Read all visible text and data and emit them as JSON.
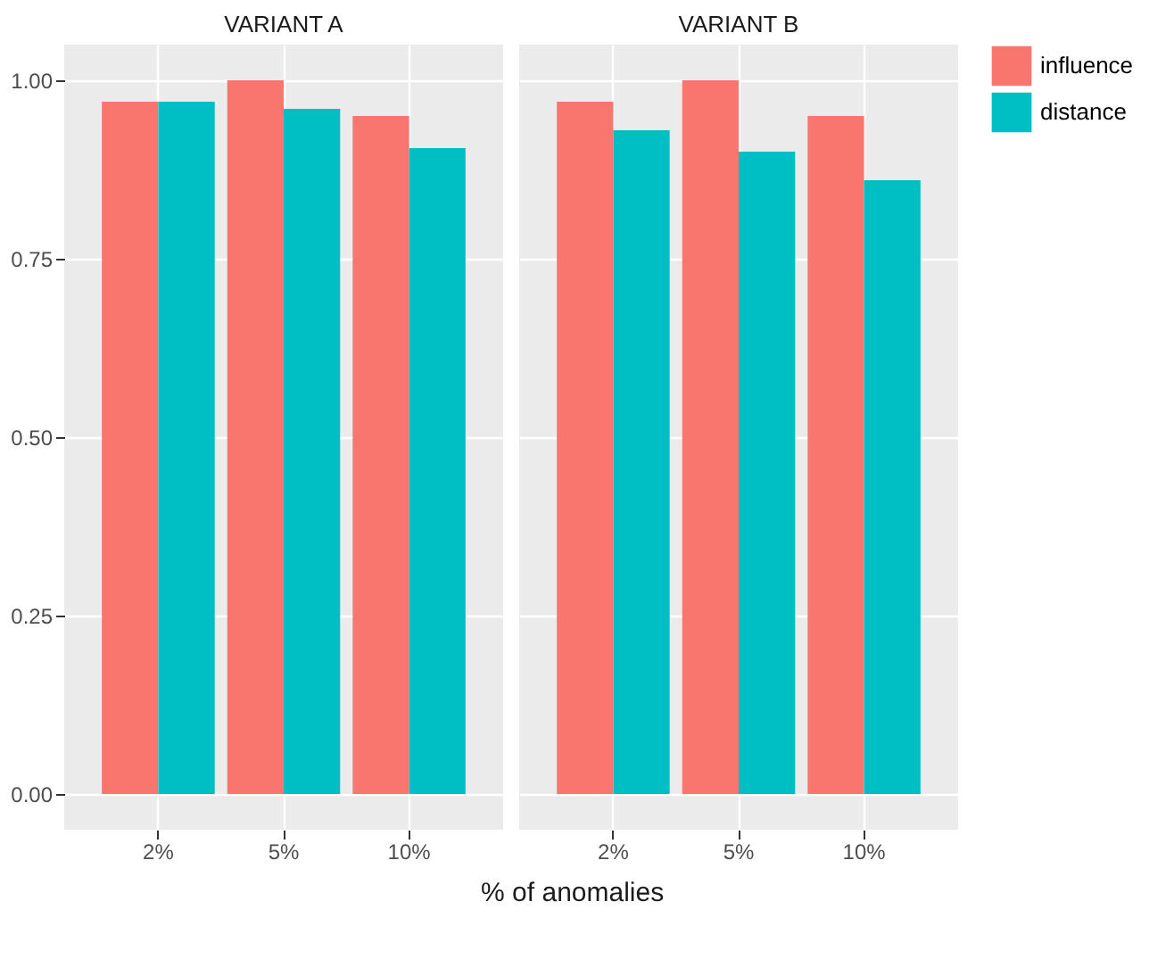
{
  "chart_data": [
    {
      "type": "bar",
      "title": "VARIANT A",
      "xlabel": "% of anomalies",
      "categories": [
        "2%",
        "5%",
        "10%"
      ],
      "series": [
        {
          "name": "influence",
          "color": "#f8766d",
          "values": [
            0.97,
            1.0,
            0.95
          ]
        },
        {
          "name": "distance",
          "color": "#00bfc4",
          "values": [
            0.97,
            0.96,
            0.905
          ]
        }
      ],
      "ylim": [
        -0.05,
        1.05
      ],
      "yticks": [
        {
          "value": 0,
          "label": "0.00"
        },
        {
          "value": 0.25,
          "label": "0.25"
        },
        {
          "value": 0.5,
          "label": "0.50"
        },
        {
          "value": 0.75,
          "label": "0.75"
        },
        {
          "value": 1,
          "label": "1.00"
        }
      ],
      "grid": true,
      "legend": "right"
    },
    {
      "type": "bar",
      "title": "VARIANT B",
      "categories": [
        "2%",
        "5%",
        "10%"
      ],
      "series": [
        {
          "name": "influence",
          "color": "#f8766d",
          "values": [
            0.97,
            1.0,
            0.95
          ]
        },
        {
          "name": "distance",
          "color": "#00bfc4",
          "values": [
            0.93,
            0.9,
            0.86
          ]
        }
      ],
      "ylim": [
        -0.05,
        1.05
      ],
      "yticks": [
        0,
        0.25,
        0.5,
        0.75,
        1
      ],
      "grid": true,
      "tick_labels": "x",
      "legend": "right"
    }
  ]
}
